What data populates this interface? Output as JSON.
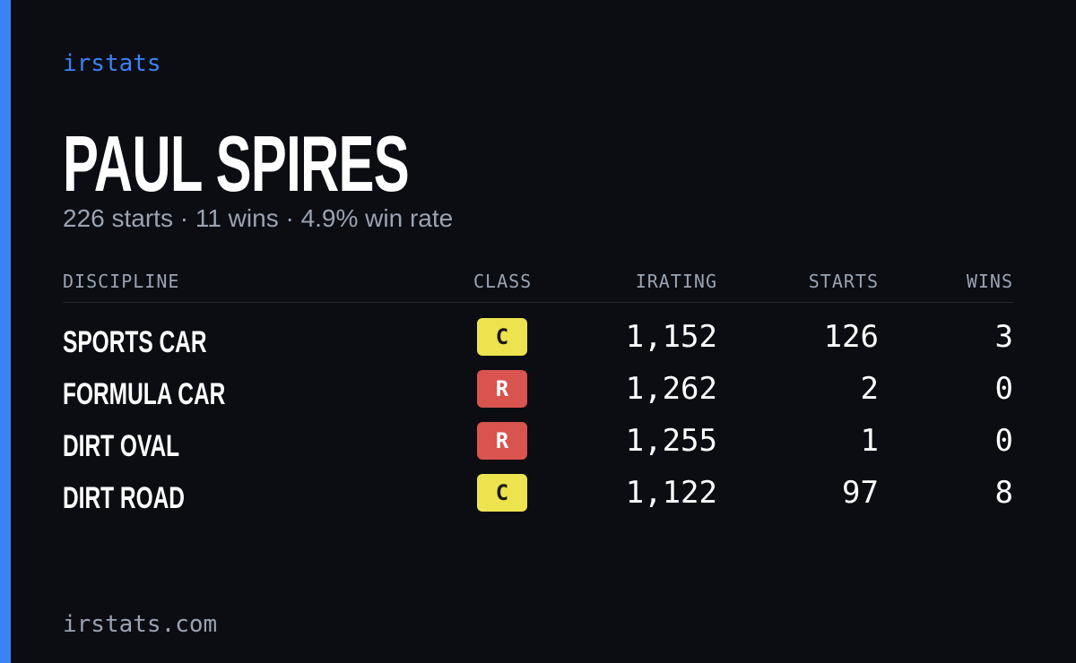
{
  "brand": "irstats",
  "driver": {
    "name": "PAUL SPIRES",
    "summary": "226 starts · 11 wins · 4.9% win rate"
  },
  "table": {
    "headers": [
      "DISCIPLINE",
      "CLASS",
      "IRATING",
      "STARTS",
      "WINS"
    ],
    "rows": [
      {
        "discipline": "SPORTS CAR",
        "class": "C",
        "class_color": "#ede34f",
        "class_text_color": "#1a1a1a",
        "irating": "1,152",
        "starts": 126,
        "wins": 3
      },
      {
        "discipline": "FORMULA CAR",
        "class": "R",
        "class_color": "#d9534f",
        "class_text_color": "#ffffff",
        "irating": "1,262",
        "starts": 2,
        "wins": 0
      },
      {
        "discipline": "DIRT OVAL",
        "class": "R",
        "class_color": "#d9534f",
        "class_text_color": "#ffffff",
        "irating": "1,255",
        "starts": 1,
        "wins": 0
      },
      {
        "discipline": "DIRT ROAD",
        "class": "C",
        "class_color": "#ede34f",
        "class_text_color": "#1a1a1a",
        "irating": "1,122",
        "starts": 97,
        "wins": 8
      }
    ]
  },
  "footer": "irstats.com"
}
